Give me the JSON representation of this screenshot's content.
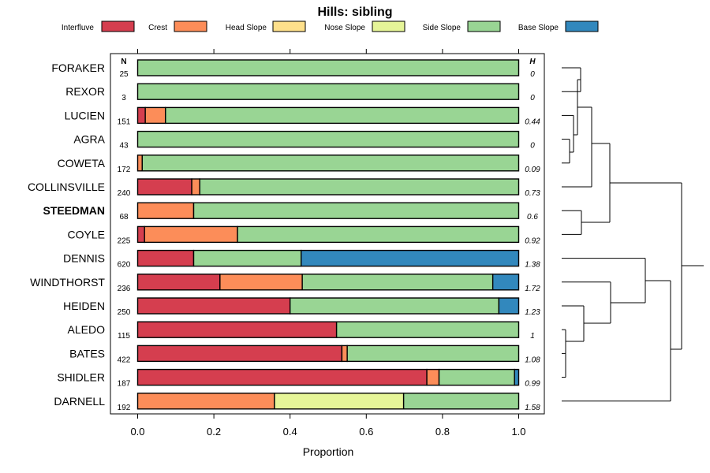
{
  "chart_data": {
    "type": "bar",
    "subtype": "stacked-horizontal-proportion",
    "title": "Hills: sibling",
    "xlabel": "Proportion",
    "ylabel": "",
    "xlim": [
      0,
      1
    ],
    "xticks": [
      "0.0",
      "0.2",
      "0.4",
      "0.6",
      "0.8",
      "1.0"
    ],
    "n_header": "N",
    "h_header": "H",
    "legend_position": "top",
    "categories_legend": [
      {
        "name": "Interfluve",
        "color": "#D53E4F"
      },
      {
        "name": "Crest",
        "color": "#FC8D59"
      },
      {
        "name": "Head Slope",
        "color": "#FEE08B"
      },
      {
        "name": "Nose Slope",
        "color": "#E6F598"
      },
      {
        "name": "Side Slope",
        "color": "#99D594"
      },
      {
        "name": "Base Slope",
        "color": "#3288BD"
      }
    ],
    "rows": [
      {
        "label": "FORAKER",
        "n": "25",
        "h": "0",
        "bold": false,
        "values": [
          0,
          0,
          0,
          0,
          1.0,
          0
        ]
      },
      {
        "label": "REXOR",
        "n": "3",
        "h": "0",
        "bold": false,
        "values": [
          0,
          0,
          0,
          0,
          1.0,
          0
        ]
      },
      {
        "label": "LUCIEN",
        "n": "151",
        "h": "0.44",
        "bold": false,
        "values": [
          0.02,
          0.053,
          0,
          0,
          0.927,
          0
        ]
      },
      {
        "label": "AGRA",
        "n": "43",
        "h": "0",
        "bold": false,
        "values": [
          0,
          0,
          0,
          0,
          1.0,
          0
        ]
      },
      {
        "label": "COWETA",
        "n": "172",
        "h": "0.09",
        "bold": false,
        "values": [
          0,
          0.012,
          0,
          0,
          0.988,
          0
        ]
      },
      {
        "label": "COLLINSVILLE",
        "n": "240",
        "h": "0.73",
        "bold": false,
        "values": [
          0.142,
          0.021,
          0,
          0,
          0.837,
          0
        ]
      },
      {
        "label": "STEEDMAN",
        "n": "68",
        "h": "0.6",
        "bold": true,
        "values": [
          0,
          0.147,
          0,
          0,
          0.853,
          0
        ]
      },
      {
        "label": "COYLE",
        "n": "225",
        "h": "0.92",
        "bold": false,
        "values": [
          0.018,
          0.244,
          0,
          0,
          0.738,
          0
        ]
      },
      {
        "label": "DENNIS",
        "n": "620",
        "h": "1.38",
        "bold": false,
        "values": [
          0.147,
          0,
          0,
          0,
          0.282,
          0.571
        ]
      },
      {
        "label": "WINDTHORST",
        "n": "236",
        "h": "1.72",
        "bold": false,
        "values": [
          0.216,
          0.216,
          0,
          0,
          0.5,
          0.068
        ]
      },
      {
        "label": "HEIDEN",
        "n": "250",
        "h": "1.23",
        "bold": false,
        "values": [
          0.4,
          0,
          0,
          0,
          0.548,
          0.052
        ]
      },
      {
        "label": "ALEDO",
        "n": "115",
        "h": "1",
        "bold": false,
        "values": [
          0.522,
          0,
          0,
          0,
          0.478,
          0
        ]
      },
      {
        "label": "BATES",
        "n": "422",
        "h": "1.08",
        "bold": false,
        "values": [
          0.536,
          0.014,
          0,
          0,
          0.45,
          0
        ]
      },
      {
        "label": "SHIDLER",
        "n": "187",
        "h": "0.99",
        "bold": false,
        "values": [
          0.759,
          0.032,
          0,
          0,
          0.198,
          0.011
        ]
      },
      {
        "label": "DARNELL",
        "n": "192",
        "h": "1.58",
        "bold": false,
        "values": [
          0,
          0.359,
          0,
          0.339,
          0.302,
          0
        ]
      }
    ]
  }
}
